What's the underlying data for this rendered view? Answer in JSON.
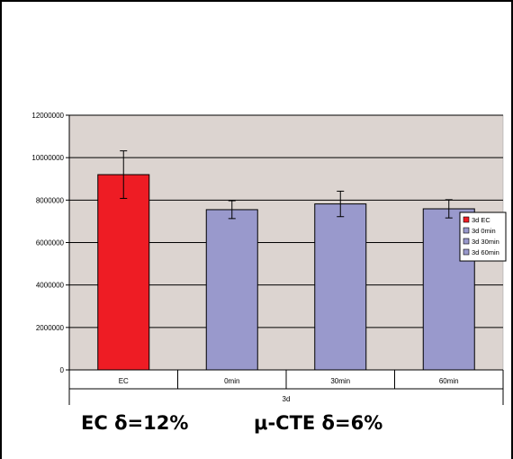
{
  "chart_data": {
    "type": "bar",
    "title": "",
    "xlabel": "3d",
    "ylabel": "",
    "categories": [
      "EC",
      "0min",
      "30min",
      "60min"
    ],
    "values": [
      9200000,
      7550000,
      7820000,
      7590000
    ],
    "errors": [
      1120000,
      420000,
      600000,
      430000
    ],
    "bar_colors": [
      "#ee1c24",
      "#9999cc",
      "#9999cc",
      "#9999cc"
    ],
    "ylim": [
      0,
      12000000
    ],
    "yticks": [
      0,
      2000000,
      4000000,
      6000000,
      8000000,
      10000000,
      12000000
    ],
    "ytick_labels": [
      "0",
      "2000000",
      "4000000",
      "6000000",
      "8000000",
      "10000000",
      "12000000"
    ],
    "grid": true,
    "plot_background": "#dcd4d0",
    "legend": {
      "placement": "right",
      "entries": [
        {
          "label": "3d EC",
          "color": "#ee1c24"
        },
        {
          "label": "3d 0min",
          "color": "#9999cc"
        },
        {
          "label": "3d 30min",
          "color": "#9999cc"
        },
        {
          "label": "3d 60min",
          "color": "#9999cc"
        }
      ]
    }
  },
  "captions": {
    "left": "EC δ=12%",
    "right": "μ-CTE δ=6%"
  }
}
